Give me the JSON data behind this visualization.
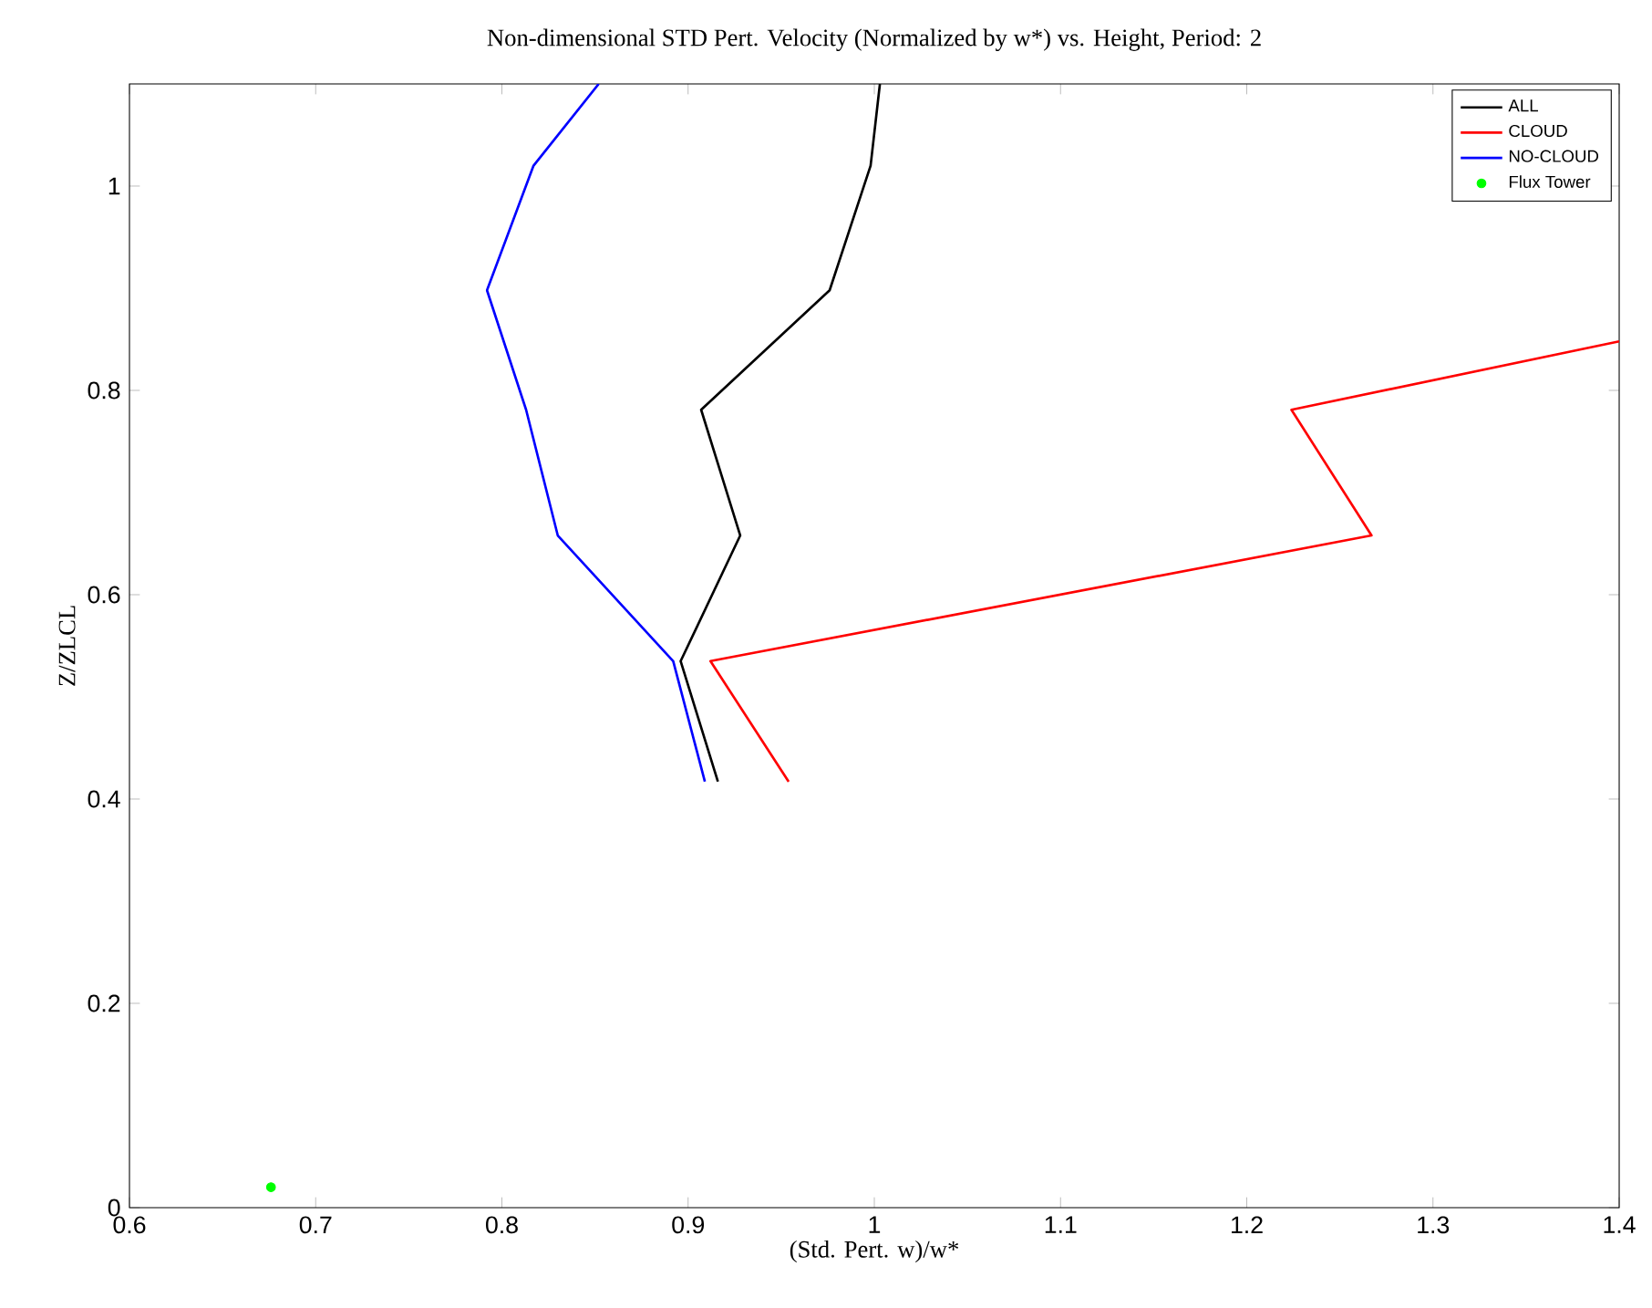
{
  "chart_data": {
    "type": "line",
    "title": "Non-dimensional STD Pert. Velocity (Normalized by w*) vs. Height, Period: 2",
    "xlabel": "(Std. Pert. w)/w*",
    "ylabel": "Z/ZLCL",
    "xlim": [
      0.6,
      1.4
    ],
    "ylim": [
      0,
      1.1
    ],
    "xticks": [
      0.6,
      0.7,
      0.8,
      0.9,
      1,
      1.1,
      1.2,
      1.3,
      1.4
    ],
    "yticks": [
      0,
      0.2,
      0.4,
      0.6,
      0.8,
      1
    ],
    "legend": "top right",
    "grid": false,
    "series": [
      {
        "name": "ALL",
        "color": "#000000",
        "x": [
          0.916,
          0.896,
          0.928,
          0.907,
          0.976,
          0.998,
          1.003
        ],
        "values": [
          0.417,
          0.535,
          0.658,
          0.781,
          0.898,
          1.02,
          1.1
        ]
      },
      {
        "name": "CLOUD",
        "color": "#ff0000",
        "x": [
          0.954,
          0.912,
          1.267,
          1.224,
          1.4
        ],
        "values": [
          0.417,
          0.535,
          0.658,
          0.781,
          0.848
        ]
      },
      {
        "name": "NO-CLOUD",
        "color": "#0000ff",
        "x": [
          0.909,
          0.892,
          0.83,
          0.813,
          0.792,
          0.817,
          0.852
        ],
        "values": [
          0.417,
          0.535,
          0.658,
          0.781,
          0.898,
          1.02,
          1.1
        ]
      },
      {
        "name": "Flux Tower",
        "type": "scatter",
        "marker": "circle",
        "color": "#00ff00",
        "x": [
          0.676
        ],
        "values": [
          0.02
        ]
      }
    ]
  }
}
